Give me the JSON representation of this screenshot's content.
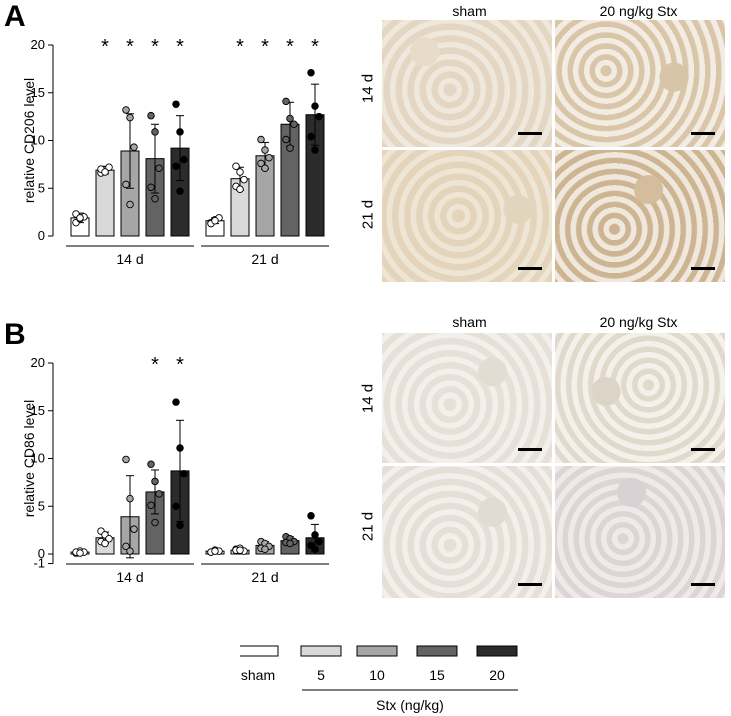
{
  "panels": {
    "a_label": "A",
    "b_label": "B"
  },
  "chart_data": [
    {
      "type": "bar",
      "panel": "A",
      "ylabel": "relative CD206 level",
      "ylim": [
        0,
        20
      ],
      "yticks": [
        "0",
        "5",
        "10",
        "15",
        "20"
      ],
      "groups": [
        "14 d",
        "21 d"
      ],
      "series_names": [
        "sham",
        "5",
        "10",
        "15",
        "20"
      ],
      "colors": [
        "#ffffff",
        "#d9d9d9",
        "#a6a6a6",
        "#636363",
        "#2b2b2b"
      ],
      "dot_colors": [
        "#ffffff",
        "#ffffff",
        "#a6a6a6",
        "#636363",
        "#000000"
      ],
      "bars": [
        {
          "group": 0,
          "series": 0,
          "mean": 1.9,
          "sd": 0.5,
          "points": [
            1.4,
            1.8,
            2.0,
            2.3,
            1.9
          ],
          "sig": false
        },
        {
          "group": 0,
          "series": 1,
          "mean": 6.9,
          "sd": 0.4,
          "points": [
            6.6,
            6.9,
            7.2,
            7.0,
            6.7
          ],
          "sig": true
        },
        {
          "group": 0,
          "series": 2,
          "mean": 8.9,
          "sd": 3.9,
          "points": [
            13.2,
            12.4,
            9.3,
            5.4,
            3.3
          ],
          "sig": true
        },
        {
          "group": 0,
          "series": 3,
          "mean": 8.1,
          "sd": 3.6,
          "points": [
            12.6,
            10.9,
            7.1,
            5.1,
            3.9
          ],
          "sig": true
        },
        {
          "group": 0,
          "series": 4,
          "mean": 9.2,
          "sd": 3.4,
          "points": [
            13.8,
            10.9,
            8.0,
            7.3,
            4.7
          ],
          "sig": true
        },
        {
          "group": 1,
          "series": 0,
          "mean": 1.6,
          "sd": 0.3,
          "points": [
            1.4,
            1.7,
            1.9,
            1.3,
            1.6
          ],
          "sig": false
        },
        {
          "group": 1,
          "series": 1,
          "mean": 6.0,
          "sd": 1.2,
          "points": [
            7.3,
            6.7,
            5.9,
            5.2,
            4.9
          ],
          "sig": true
        },
        {
          "group": 1,
          "series": 2,
          "mean": 8.4,
          "sd": 1.4,
          "points": [
            10.1,
            9.0,
            8.2,
            7.6,
            7.1
          ],
          "sig": true
        },
        {
          "group": 1,
          "series": 3,
          "mean": 11.7,
          "sd": 2.3,
          "points": [
            14.1,
            12.3,
            11.7,
            10.1,
            9.2
          ],
          "sig": true
        },
        {
          "group": 1,
          "series": 4,
          "mean": 12.7,
          "sd": 3.2,
          "points": [
            17.1,
            13.6,
            12.5,
            10.4,
            9.0
          ],
          "sig": true
        }
      ]
    },
    {
      "type": "bar",
      "panel": "B",
      "ylabel": "relative CD86 level",
      "ylim": [
        -1,
        20
      ],
      "yticks": [
        "-1",
        "0",
        "5",
        "10",
        "15",
        "20"
      ],
      "groups": [
        "14 d",
        "21 d"
      ],
      "series_names": [
        "sham",
        "5",
        "10",
        "15",
        "20"
      ],
      "colors": [
        "#ffffff",
        "#d9d9d9",
        "#a6a6a6",
        "#636363",
        "#2b2b2b"
      ],
      "dot_colors": [
        "#ffffff",
        "#ffffff",
        "#a6a6a6",
        "#636363",
        "#000000"
      ],
      "bars": [
        {
          "group": 0,
          "series": 0,
          "mean": 0.2,
          "sd": 0.1,
          "points": [
            0.1,
            0.3,
            0.2,
            0.2,
            0.1
          ],
          "sig": false
        },
        {
          "group": 0,
          "series": 1,
          "mean": 1.7,
          "sd": 0.6,
          "points": [
            2.4,
            2.0,
            1.6,
            1.3,
            1.1
          ],
          "sig": false
        },
        {
          "group": 0,
          "series": 2,
          "mean": 3.9,
          "sd": 4.3,
          "points": [
            9.9,
            5.8,
            2.6,
            0.8,
            0.3
          ],
          "sig": false
        },
        {
          "group": 0,
          "series": 3,
          "mean": 6.5,
          "sd": 2.3,
          "points": [
            9.4,
            7.6,
            6.3,
            5.1,
            3.3
          ],
          "sig": true
        },
        {
          "group": 0,
          "series": 4,
          "mean": 8.7,
          "sd": 5.3,
          "points": [
            15.9,
            11.1,
            8.4,
            5.0,
            3.0
          ],
          "sig": true
        },
        {
          "group": 1,
          "series": 0,
          "mean": 0.3,
          "sd": 0.1,
          "points": [
            0.2,
            0.4,
            0.3,
            0.2,
            0.3
          ],
          "sig": false
        },
        {
          "group": 1,
          "series": 1,
          "mean": 0.4,
          "sd": 0.1,
          "points": [
            0.5,
            0.6,
            0.3,
            0.4,
            0.4
          ],
          "sig": false
        },
        {
          "group": 1,
          "series": 2,
          "mean": 0.9,
          "sd": 0.4,
          "points": [
            1.3,
            1.1,
            0.8,
            0.6,
            0.5
          ],
          "sig": false
        },
        {
          "group": 1,
          "series": 3,
          "mean": 1.4,
          "sd": 0.4,
          "points": [
            1.8,
            1.6,
            1.3,
            1.2,
            1.1
          ],
          "sig": false
        },
        {
          "group": 1,
          "series": 4,
          "mean": 1.7,
          "sd": 1.4,
          "points": [
            4.0,
            2.0,
            1.3,
            0.9,
            0.5
          ],
          "sig": false
        }
      ]
    }
  ],
  "micrographs": {
    "col_sham": "sham",
    "col_stx": "20 ng/kg Stx",
    "row_14": "14 d",
    "row_21": "21 d"
  },
  "legend": {
    "items": [
      "sham",
      "5",
      "10",
      "15",
      "20"
    ],
    "colors": [
      "#ffffff",
      "#d9d9d9",
      "#a6a6a6",
      "#636363",
      "#2b2b2b"
    ],
    "group_label": "Stx (ng/kg)"
  }
}
